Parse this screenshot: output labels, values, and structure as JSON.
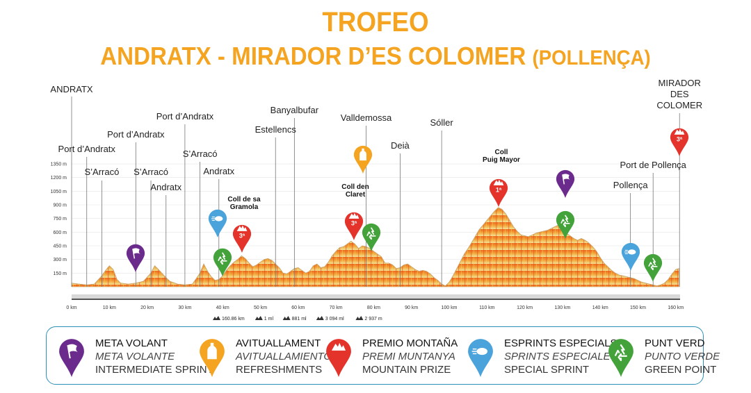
{
  "title": {
    "line1": "TROFEO",
    "line2_main": "ANDRATX - MIRADOR D’ES COLOMER",
    "line2_paren": "(POLLENÇA)"
  },
  "chart_data": {
    "type": "area",
    "x_unit": "km",
    "y_unit": "m",
    "xlim": [
      0,
      162
    ],
    "ylim": [
      0,
      1450
    ],
    "x_ticks": [
      "0 km",
      "10 km",
      "20 km",
      "30 km",
      "40 km",
      "50 km",
      "60 km",
      "70 km",
      "80 km",
      "90 km",
      "100 km",
      "110 km",
      "120 km",
      "130 km",
      "140 km",
      "150 km",
      "160 km"
    ],
    "y_ticks": [
      "150 m",
      "300 m",
      "450 m",
      "600 m",
      "750 m",
      "900 m",
      "1050 m",
      "1200 m",
      "1350 m"
    ],
    "profile": [
      [
        0,
        40
      ],
      [
        2,
        30
      ],
      [
        4,
        20
      ],
      [
        6,
        30
      ],
      [
        8,
        120
      ],
      [
        9,
        180
      ],
      [
        10,
        230
      ],
      [
        11,
        190
      ],
      [
        12,
        80
      ],
      [
        13,
        40
      ],
      [
        15,
        30
      ],
      [
        17,
        40
      ],
      [
        19,
        60
      ],
      [
        21,
        150
      ],
      [
        22,
        230
      ],
      [
        23,
        190
      ],
      [
        25,
        100
      ],
      [
        26,
        60
      ],
      [
        28,
        30
      ],
      [
        30,
        20
      ],
      [
        32,
        30
      ],
      [
        34,
        150
      ],
      [
        35,
        250
      ],
      [
        36,
        170
      ],
      [
        37,
        110
      ],
      [
        38,
        70
      ],
      [
        39,
        80
      ],
      [
        40,
        120
      ],
      [
        41,
        180
      ],
      [
        42,
        230
      ],
      [
        43,
        270
      ],
      [
        44,
        300
      ],
      [
        45,
        340
      ],
      [
        46,
        310
      ],
      [
        47,
        260
      ],
      [
        48,
        220
      ],
      [
        49,
        240
      ],
      [
        50,
        270
      ],
      [
        51,
        300
      ],
      [
        52,
        310
      ],
      [
        53,
        290
      ],
      [
        54,
        250
      ],
      [
        55,
        210
      ],
      [
        56,
        150
      ],
      [
        57,
        140
      ],
      [
        58,
        170
      ],
      [
        59,
        200
      ],
      [
        60,
        210
      ],
      [
        61,
        180
      ],
      [
        62,
        150
      ],
      [
        63,
        170
      ],
      [
        64,
        230
      ],
      [
        65,
        250
      ],
      [
        66,
        210
      ],
      [
        67,
        220
      ],
      [
        68,
        270
      ],
      [
        69,
        340
      ],
      [
        70,
        390
      ],
      [
        71,
        430
      ],
      [
        72,
        440
      ],
      [
        73,
        470
      ],
      [
        74,
        500
      ],
      [
        75,
        470
      ],
      [
        76,
        420
      ],
      [
        77,
        450
      ],
      [
        78,
        440
      ],
      [
        79,
        420
      ],
      [
        80,
        390
      ],
      [
        81,
        360
      ],
      [
        82,
        330
      ],
      [
        83,
        260
      ],
      [
        84,
        260
      ],
      [
        85,
        240
      ],
      [
        86,
        200
      ],
      [
        87,
        210
      ],
      [
        88,
        240
      ],
      [
        89,
        250
      ],
      [
        90,
        220
      ],
      [
        91,
        190
      ],
      [
        92,
        170
      ],
      [
        93,
        180
      ],
      [
        94,
        170
      ],
      [
        95,
        140
      ],
      [
        96,
        100
      ],
      [
        97,
        70
      ],
      [
        98,
        30
      ],
      [
        99,
        10
      ],
      [
        100,
        50
      ],
      [
        101,
        120
      ],
      [
        102,
        200
      ],
      [
        103,
        280
      ],
      [
        104,
        360
      ],
      [
        105,
        420
      ],
      [
        106,
        490
      ],
      [
        107,
        560
      ],
      [
        108,
        630
      ],
      [
        109,
        680
      ],
      [
        110,
        730
      ],
      [
        111,
        780
      ],
      [
        112,
        830
      ],
      [
        113,
        870
      ],
      [
        114,
        850
      ],
      [
        115,
        800
      ],
      [
        116,
        730
      ],
      [
        117,
        660
      ],
      [
        118,
        610
      ],
      [
        119,
        570
      ],
      [
        120,
        560
      ],
      [
        121,
        550
      ],
      [
        122,
        570
      ],
      [
        123,
        590
      ],
      [
        124,
        600
      ],
      [
        125,
        610
      ],
      [
        126,
        620
      ],
      [
        127,
        640
      ],
      [
        128,
        660
      ],
      [
        129,
        680
      ],
      [
        130,
        630
      ],
      [
        131,
        590
      ],
      [
        132,
        560
      ],
      [
        133,
        530
      ],
      [
        134,
        510
      ],
      [
        135,
        530
      ],
      [
        136,
        510
      ],
      [
        137,
        480
      ],
      [
        138,
        440
      ],
      [
        139,
        390
      ],
      [
        140,
        320
      ],
      [
        141,
        260
      ],
      [
        142,
        220
      ],
      [
        143,
        180
      ],
      [
        144,
        150
      ],
      [
        145,
        130
      ],
      [
        146,
        120
      ],
      [
        147,
        110
      ],
      [
        148,
        100
      ],
      [
        149,
        90
      ],
      [
        150,
        70
      ],
      [
        151,
        50
      ],
      [
        152,
        40
      ],
      [
        153,
        30
      ],
      [
        154,
        20
      ],
      [
        155,
        10
      ],
      [
        156,
        20
      ],
      [
        157,
        40
      ],
      [
        158,
        80
      ],
      [
        159,
        140
      ],
      [
        160,
        190
      ],
      [
        160.86,
        200
      ]
    ],
    "places": [
      {
        "name": "ANDRATX",
        "km": 0
      },
      {
        "name": "Port d’Andratx",
        "km": 4
      },
      {
        "name": "S’Arracó",
        "km": 8
      },
      {
        "name": "Port d’Andratx",
        "km": 17
      },
      {
        "name": "S’Arracó",
        "km": 21
      },
      {
        "name": "Andratx",
        "km": 25
      },
      {
        "name": "Port d’Andratx",
        "km": 30
      },
      {
        "name": "S’Arracó",
        "km": 34
      },
      {
        "name": "Andratx",
        "km": 39
      },
      {
        "name": "Estellencs",
        "km": 54
      },
      {
        "name": "Banyalbufar",
        "km": 59
      },
      {
        "name": "Valldemossa",
        "km": 78
      },
      {
        "name": "Deià",
        "km": 87
      },
      {
        "name": "Sóller",
        "km": 98
      },
      {
        "name": "Pollença",
        "km": 148
      },
      {
        "name": "Port de Pollença",
        "km": 154
      },
      {
        "name": "MIRADOR\nDES\nCOLOMER",
        "km": 161
      }
    ],
    "climb_labels": [
      {
        "name": "Coll de sa\nGramola"
      },
      {
        "name": "Coll den\nClaret"
      },
      {
        "name": "Coll\nPuig Mayor"
      }
    ],
    "markers": [
      {
        "type": "meta_volant",
        "km": 17
      },
      {
        "type": "esprint",
        "km": 39
      },
      {
        "type": "punt_verd",
        "km": 40
      },
      {
        "type": "muntanya",
        "km": 45,
        "category": "3ª"
      },
      {
        "type": "muntanya",
        "km": 75,
        "category": "3ª"
      },
      {
        "type": "avituallament",
        "km": 78
      },
      {
        "type": "punt_verd",
        "km": 80
      },
      {
        "type": "muntanya",
        "km": 113,
        "category": "1ª"
      },
      {
        "type": "meta_volant",
        "km": 130
      },
      {
        "type": "punt_verd",
        "km": 130
      },
      {
        "type": "esprint",
        "km": 148
      },
      {
        "type": "punt_verd",
        "km": 154
      },
      {
        "type": "muntanya",
        "km": 161,
        "category": "3ª"
      }
    ],
    "stats": [
      "160.86 km",
      "1 ml",
      "881 ml",
      "3 094 ml",
      "2 937 m"
    ]
  },
  "colors": {
    "title": "#f4a421",
    "meta_volant": "#6b2b8c",
    "avituallament": "#f4a421",
    "muntanya": "#e3332a",
    "esprint": "#4aa3db",
    "punt_verd": "#43a33a",
    "legend_border": "#2b8fb8"
  },
  "legend": [
    {
      "type": "meta_volant",
      "icon": "flag-icon",
      "l1": "META VOLANT",
      "l2": "META VOLANTE",
      "l3": "INTERMEDIATE SPRINT"
    },
    {
      "type": "avituallament",
      "icon": "bottle-icon",
      "l1": "AVITUALLAMENT",
      "l2": "AVITUALLAMIENTO",
      "l3": "REFRESHMENTS"
    },
    {
      "type": "muntanya",
      "icon": "mountain-icon",
      "l1": "PREMIO MONTAÑA",
      "l2": "PREMI MUNTANYA",
      "l3": "MOUNTAIN PRIZE"
    },
    {
      "type": "esprint",
      "icon": "speed-icon",
      "l1": "ESPRINTS ESPECIALS",
      "l2": "SPRINTS ESPECIALES",
      "l3": "SPECIAL SPRINT"
    },
    {
      "type": "punt_verd",
      "icon": "recycle-icon",
      "l1": "PUNT VERD",
      "l2": "PUNTO VERDE",
      "l3": "GREEN POINT"
    }
  ]
}
